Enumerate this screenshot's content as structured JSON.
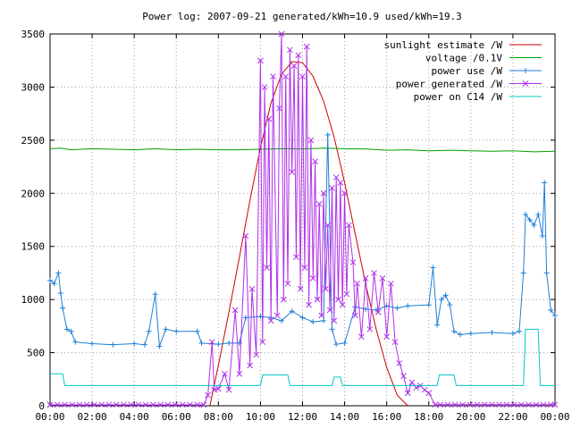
{
  "chart_data": {
    "type": "line",
    "title": "Power log: 2007-09-21 generated/kWh=10.9 used/kWh=19.3",
    "xlabel": "",
    "ylabel": "",
    "x_range_hours": [
      0,
      24
    ],
    "ylim": [
      0,
      3500
    ],
    "x_ticks": [
      "00:00",
      "02:00",
      "04:00",
      "06:00",
      "08:00",
      "10:00",
      "12:00",
      "14:00",
      "16:00",
      "18:00",
      "20:00",
      "22:00",
      "00:00"
    ],
    "y_ticks": [
      "0",
      "500",
      "1000",
      "1500",
      "2000",
      "2500",
      "3000",
      "3500"
    ],
    "grid": true,
    "legend_position": "top-right",
    "series": [
      {
        "name": "sunlight estimate /W",
        "color": "#cc0000",
        "marker": "none",
        "points": [
          [
            7.6,
            0
          ],
          [
            8.0,
            380
          ],
          [
            8.5,
            880
          ],
          [
            9.0,
            1400
          ],
          [
            9.5,
            1930
          ],
          [
            10.0,
            2430
          ],
          [
            10.5,
            2850
          ],
          [
            11.0,
            3120
          ],
          [
            11.5,
            3240
          ],
          [
            12.0,
            3230
          ],
          [
            12.5,
            3100
          ],
          [
            13.0,
            2870
          ],
          [
            13.5,
            2530
          ],
          [
            14.0,
            2100
          ],
          [
            14.5,
            1620
          ],
          [
            15.0,
            1150
          ],
          [
            15.5,
            720
          ],
          [
            16.0,
            360
          ],
          [
            16.5,
            100
          ],
          [
            17.0,
            0
          ]
        ]
      },
      {
        "name": "voltage /0.1V",
        "color": "#00a000",
        "marker": "none",
        "points": [
          [
            0,
            2420
          ],
          [
            0.5,
            2425
          ],
          [
            1,
            2410
          ],
          [
            2,
            2420
          ],
          [
            3,
            2415
          ],
          [
            4,
            2410
          ],
          [
            5,
            2420
          ],
          [
            6,
            2410
          ],
          [
            7,
            2415
          ],
          [
            8,
            2410
          ],
          [
            9,
            2410
          ],
          [
            10,
            2415
          ],
          [
            11,
            2420
          ],
          [
            12,
            2418
          ],
          [
            13,
            2425
          ],
          [
            14,
            2420
          ],
          [
            15,
            2418
          ],
          [
            16,
            2405
          ],
          [
            17,
            2410
          ],
          [
            18,
            2400
          ],
          [
            19,
            2405
          ],
          [
            20,
            2400
          ],
          [
            21,
            2395
          ],
          [
            22,
            2400
          ],
          [
            23,
            2390
          ],
          [
            24,
            2395
          ]
        ]
      },
      {
        "name": "power use /W",
        "color": "#1e7fd6",
        "marker": "plus",
        "points": [
          [
            0,
            1180
          ],
          [
            0.2,
            1150
          ],
          [
            0.4,
            1250
          ],
          [
            0.5,
            1060
          ],
          [
            0.6,
            920
          ],
          [
            0.8,
            720
          ],
          [
            1.0,
            700
          ],
          [
            1.2,
            600
          ],
          [
            2,
            585
          ],
          [
            3,
            575
          ],
          [
            4,
            585
          ],
          [
            4.5,
            575
          ],
          [
            4.7,
            700
          ],
          [
            5.0,
            1050
          ],
          [
            5.2,
            560
          ],
          [
            5.5,
            720
          ],
          [
            6,
            700
          ],
          [
            7,
            700
          ],
          [
            7.2,
            590
          ],
          [
            8,
            580
          ],
          [
            8.5,
            590
          ],
          [
            9,
            590
          ],
          [
            9.3,
            830
          ],
          [
            10,
            840
          ],
          [
            10.5,
            830
          ],
          [
            11,
            800
          ],
          [
            11.5,
            890
          ],
          [
            12,
            830
          ],
          [
            12.5,
            790
          ],
          [
            13,
            800
          ],
          [
            13.2,
            2550
          ],
          [
            13.4,
            720
          ],
          [
            13.6,
            580
          ],
          [
            14,
            590
          ],
          [
            14.5,
            930
          ],
          [
            15,
            910
          ],
          [
            15.5,
            900
          ],
          [
            16,
            940
          ],
          [
            16.5,
            920
          ],
          [
            17,
            940
          ],
          [
            18,
            950
          ],
          [
            18.2,
            1300
          ],
          [
            18.4,
            760
          ],
          [
            18.6,
            1000
          ],
          [
            18.8,
            1040
          ],
          [
            19,
            950
          ],
          [
            19.2,
            700
          ],
          [
            19.5,
            670
          ],
          [
            20,
            680
          ],
          [
            21,
            690
          ],
          [
            22,
            680
          ],
          [
            22.3,
            700
          ],
          [
            22.5,
            1250
          ],
          [
            22.6,
            1800
          ],
          [
            22.8,
            1750
          ],
          [
            23,
            1700
          ],
          [
            23.2,
            1800
          ],
          [
            23.4,
            1600
          ],
          [
            23.5,
            2100
          ],
          [
            23.6,
            1250
          ],
          [
            23.8,
            900
          ],
          [
            24,
            850
          ]
        ]
      },
      {
        "name": "power generated /W",
        "color": "#b030e8",
        "marker": "cross",
        "points": [
          [
            0,
            8
          ],
          [
            7.3,
            8
          ],
          [
            7.5,
            100
          ],
          [
            7.7,
            600
          ],
          [
            7.8,
            150
          ],
          [
            8.0,
            160
          ],
          [
            8.3,
            300
          ],
          [
            8.5,
            150
          ],
          [
            8.8,
            900
          ],
          [
            9.0,
            300
          ],
          [
            9.3,
            1600
          ],
          [
            9.5,
            380
          ],
          [
            9.6,
            1100
          ],
          [
            9.8,
            480
          ],
          [
            10.0,
            3250
          ],
          [
            10.1,
            600
          ],
          [
            10.2,
            3000
          ],
          [
            10.3,
            1300
          ],
          [
            10.4,
            2700
          ],
          [
            10.5,
            800
          ],
          [
            10.6,
            3100
          ],
          [
            10.8,
            850
          ],
          [
            10.9,
            2800
          ],
          [
            11.0,
            3500
          ],
          [
            11.1,
            1000
          ],
          [
            11.2,
            3100
          ],
          [
            11.3,
            1150
          ],
          [
            11.4,
            3350
          ],
          [
            11.5,
            2200
          ],
          [
            11.6,
            3200
          ],
          [
            11.7,
            1400
          ],
          [
            11.8,
            3300
          ],
          [
            11.9,
            1100
          ],
          [
            12.0,
            3100
          ],
          [
            12.1,
            1300
          ],
          [
            12.2,
            3380
          ],
          [
            12.3,
            950
          ],
          [
            12.4,
            2500
          ],
          [
            12.5,
            1200
          ],
          [
            12.6,
            2300
          ],
          [
            12.7,
            1000
          ],
          [
            12.8,
            1900
          ],
          [
            12.9,
            850
          ],
          [
            13.0,
            2000
          ],
          [
            13.1,
            1100
          ],
          [
            13.2,
            1700
          ],
          [
            13.3,
            900
          ],
          [
            13.4,
            2050
          ],
          [
            13.5,
            800
          ],
          [
            13.6,
            2150
          ],
          [
            13.7,
            1000
          ],
          [
            13.8,
            2100
          ],
          [
            13.9,
            950
          ],
          [
            14.0,
            2000
          ],
          [
            14.1,
            1050
          ],
          [
            14.2,
            1700
          ],
          [
            14.4,
            1350
          ],
          [
            14.5,
            850
          ],
          [
            14.6,
            1150
          ],
          [
            14.8,
            650
          ],
          [
            15.0,
            1200
          ],
          [
            15.2,
            720
          ],
          [
            15.4,
            1250
          ],
          [
            15.6,
            880
          ],
          [
            15.8,
            1200
          ],
          [
            16.0,
            650
          ],
          [
            16.2,
            1150
          ],
          [
            16.4,
            600
          ],
          [
            16.6,
            400
          ],
          [
            16.8,
            280
          ],
          [
            17.0,
            120
          ],
          [
            17.2,
            220
          ],
          [
            17.4,
            170
          ],
          [
            17.6,
            190
          ],
          [
            17.8,
            150
          ],
          [
            18.0,
            120
          ],
          [
            18.3,
            10
          ],
          [
            24,
            10
          ]
        ]
      },
      {
        "name": "power on C14 /W",
        "color": "#00c8c8",
        "marker": "none",
        "points": [
          [
            0,
            300
          ],
          [
            0.6,
            300
          ],
          [
            0.7,
            190
          ],
          [
            10.0,
            190
          ],
          [
            10.1,
            290
          ],
          [
            11.3,
            290
          ],
          [
            11.4,
            190
          ],
          [
            13.4,
            190
          ],
          [
            13.5,
            270
          ],
          [
            13.8,
            270
          ],
          [
            13.9,
            190
          ],
          [
            18.4,
            190
          ],
          [
            18.5,
            290
          ],
          [
            19.2,
            290
          ],
          [
            19.3,
            190
          ],
          [
            22.5,
            190
          ],
          [
            22.6,
            720
          ],
          [
            23.2,
            720
          ],
          [
            23.3,
            190
          ],
          [
            24,
            190
          ]
        ]
      }
    ]
  }
}
